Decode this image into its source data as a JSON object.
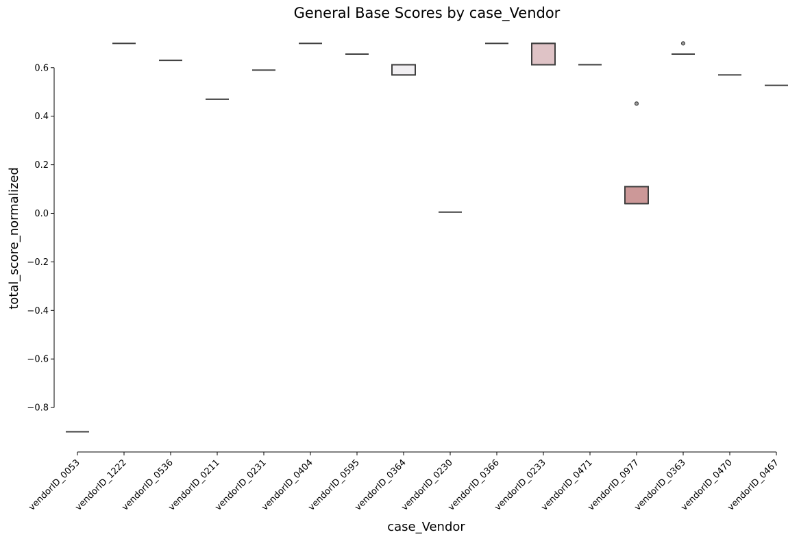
{
  "chart_data": {
    "type": "box",
    "title": "General Base Scores by case_Vendor",
    "xlabel": "case_Vendor",
    "ylabel": "total_score_normalized",
    "ylim": [
      -0.97,
      0.74
    ],
    "yticks": [
      -0.8,
      -0.6,
      -0.4,
      -0.2,
      0.0,
      0.2,
      0.4,
      0.6
    ],
    "ytick_labels": [
      "−0.8",
      "−0.6",
      "−0.4",
      "−0.2",
      "0.0",
      "0.2",
      "0.4",
      "0.6"
    ],
    "categories": [
      "vendorID_0053",
      "vendorID_1222",
      "vendorID_0536",
      "vendorID_0211",
      "vendorID_0231",
      "vendorID_0404",
      "vendorID_0595",
      "vendorID_0364",
      "vendorID_0230",
      "vendorID_0366",
      "vendorID_0233",
      "vendorID_0471",
      "vendorID_0977",
      "vendorID_0363",
      "vendorID_0470",
      "vendorID_0467"
    ],
    "boxes": [
      {
        "q1": -0.9,
        "median": -0.9,
        "q3": -0.9,
        "color": "#9e9e9e",
        "outliers": []
      },
      {
        "q1": 0.7,
        "median": 0.7,
        "q3": 0.7,
        "color": "#9e9e9e",
        "outliers": []
      },
      {
        "q1": 0.63,
        "median": 0.63,
        "q3": 0.63,
        "color": "#9e9e9e",
        "outliers": []
      },
      {
        "q1": 0.47,
        "median": 0.47,
        "q3": 0.47,
        "color": "#9e9e9e",
        "outliers": []
      },
      {
        "q1": 0.59,
        "median": 0.59,
        "q3": 0.59,
        "color": "#9e9e9e",
        "outliers": []
      },
      {
        "q1": 0.7,
        "median": 0.7,
        "q3": 0.7,
        "color": "#9e9e9e",
        "outliers": []
      },
      {
        "q1": 0.656,
        "median": 0.656,
        "q3": 0.656,
        "color": "#9e9e9e",
        "outliers": []
      },
      {
        "q1": 0.57,
        "median": 0.57,
        "q3": 0.612,
        "color": "#f1eff2",
        "outliers": []
      },
      {
        "q1": 0.005,
        "median": 0.005,
        "q3": 0.005,
        "color": "#9e9e9e",
        "outliers": []
      },
      {
        "q1": 0.7,
        "median": 0.7,
        "q3": 0.7,
        "color": "#9e9e9e",
        "outliers": []
      },
      {
        "q1": 0.612,
        "median": 0.7,
        "q3": 0.7,
        "color": "#dfc3c6",
        "outliers": []
      },
      {
        "q1": 0.612,
        "median": 0.612,
        "q3": 0.612,
        "color": "#9e9e9e",
        "outliers": []
      },
      {
        "q1": 0.04,
        "median": 0.04,
        "q3": 0.11,
        "color": "#cc9898",
        "outliers": [
          0.452
        ]
      },
      {
        "q1": 0.656,
        "median": 0.656,
        "q3": 0.656,
        "color": "#9e9e9e",
        "outliers": [
          0.7
        ]
      },
      {
        "q1": 0.57,
        "median": 0.57,
        "q3": 0.57,
        "color": "#9e9e9e",
        "outliers": []
      },
      {
        "q1": 0.527,
        "median": 0.527,
        "q3": 0.527,
        "color": "#9e9e9e",
        "outliers": []
      }
    ],
    "grid": false,
    "legend": "none"
  }
}
